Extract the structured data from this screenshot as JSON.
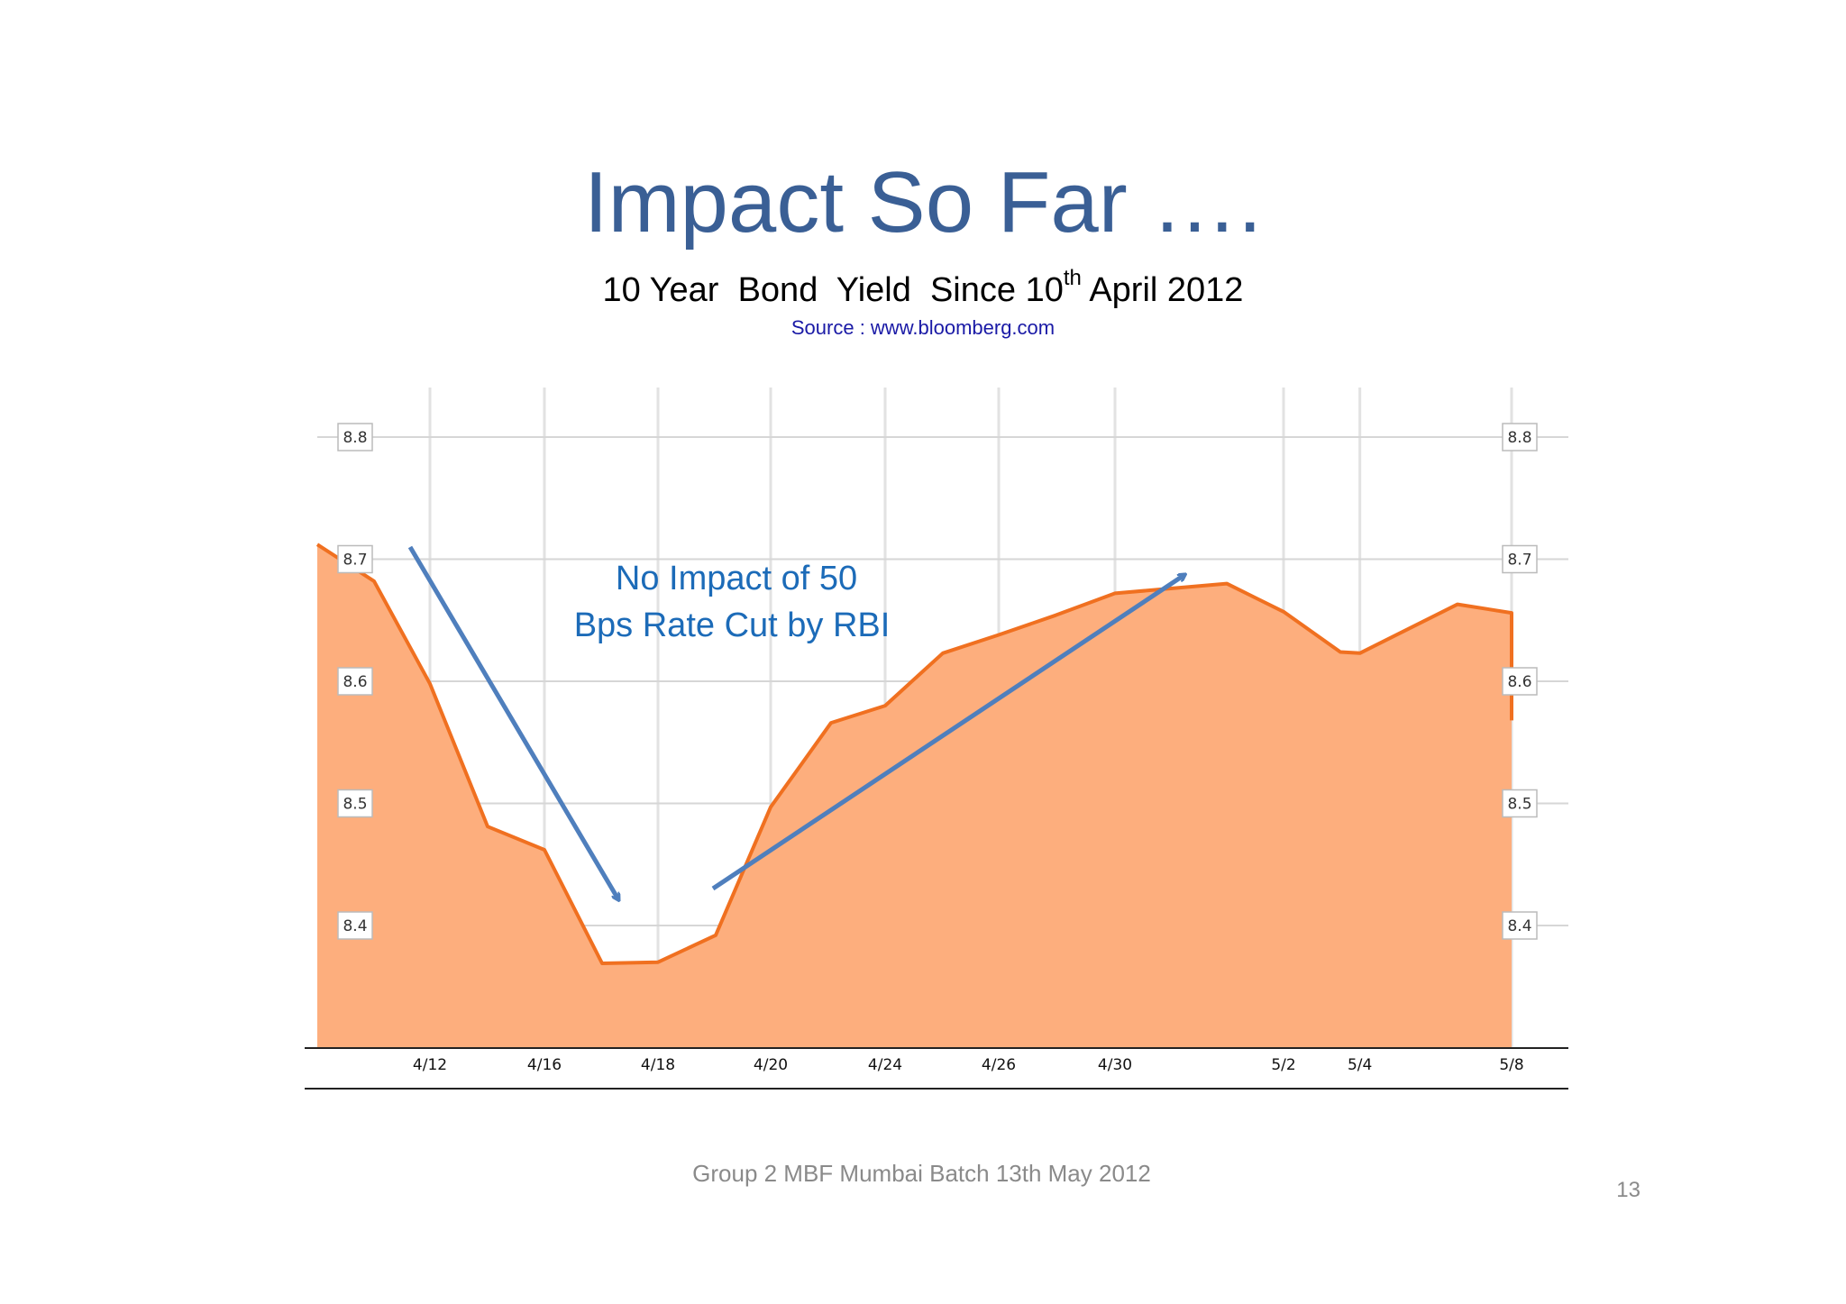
{
  "slide": {
    "title": "Impact So Far ….",
    "subtitle_main": "10 Year  Bond  Yield  Since 10",
    "subtitle_sup": "th",
    "subtitle_rest": " April 2012",
    "source": "Source : www.bloomberg.com",
    "footer": "Group 2 MBF Mumbai Batch 13th May 2012",
    "page_number": "13"
  },
  "chart_data": {
    "type": "area",
    "x_tick_labels": [
      "4/12",
      "4/16",
      "4/18",
      "4/20",
      "4/24",
      "4/26",
      "4/30",
      "5/2",
      "5/4",
      "5/8"
    ],
    "y_tick_labels": [
      "8.8",
      "8.7",
      "8.6",
      "8.5",
      "8.4"
    ],
    "y_ticks": [
      8.8,
      8.7,
      8.6,
      8.5,
      8.4
    ],
    "ylim": [
      8.3,
      8.84
    ],
    "grid": true,
    "points": [
      {
        "x": "4/10",
        "y": 8.712
      },
      {
        "x": "4/11",
        "y": 8.682
      },
      {
        "x": "4/12",
        "y": 8.598
      },
      {
        "x": "4/13",
        "y": 8.481
      },
      {
        "x": "4/16",
        "y": 8.462
      },
      {
        "x": "4/17",
        "y": 8.369
      },
      {
        "x": "4/18",
        "y": 8.37
      },
      {
        "x": "4/19",
        "y": 8.392
      },
      {
        "x": "4/20",
        "y": 8.497
      },
      {
        "x": "4/23",
        "y": 8.566
      },
      {
        "x": "4/24",
        "y": 8.58
      },
      {
        "x": "4/25",
        "y": 8.623
      },
      {
        "x": "4/26",
        "y": 8.638
      },
      {
        "x": "4/27",
        "y": 8.654
      },
      {
        "x": "4/30",
        "y": 8.672
      },
      {
        "x": "5/1",
        "y": 8.68
      },
      {
        "x": "5/2",
        "y": 8.657
      },
      {
        "x": "5/3",
        "y": 8.624
      },
      {
        "x": "5/4",
        "y": 8.623
      },
      {
        "x": "5/7",
        "y": 8.663
      },
      {
        "x": "5/8",
        "y": 8.656
      },
      {
        "x": "5/9",
        "y": 8.568
      }
    ],
    "annotation": {
      "line1": "No Impact of 50",
      "line2": "Bps Rate Cut by RBI"
    },
    "colors": {
      "fill": "#fdae7d",
      "line": "#f07020",
      "arrow": "#4f7fbd",
      "grid": "#e2e2e2"
    }
  }
}
